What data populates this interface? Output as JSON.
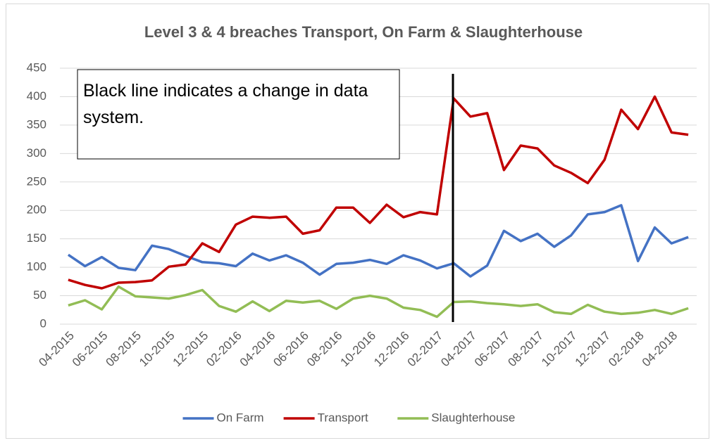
{
  "chart_data": {
    "type": "line",
    "title": "Level 3 & 4 breaches Transport, On Farm & Slaughterhouse",
    "annotation": "Black line indicates a change in data system.",
    "categories": [
      "04-2015",
      null,
      "06-2015",
      null,
      "08-2015",
      null,
      "10-2015",
      null,
      "12-2015",
      null,
      "02-2016",
      null,
      "04-2016",
      null,
      "06-2016",
      null,
      "08-2016",
      null,
      "10-2016",
      null,
      "12-2016",
      null,
      "02-2017",
      null,
      "04-2017",
      null,
      "06-2017",
      null,
      "08-2017",
      null,
      "10-2017",
      null,
      "12-2017",
      null,
      "02-2018",
      null,
      "04-2018",
      null
    ],
    "series": [
      {
        "name": "On Farm",
        "color": "#4472c4",
        "values": [
          122,
          102,
          118,
          99,
          95,
          138,
          132,
          120,
          109,
          107,
          102,
          124,
          112,
          121,
          108,
          87,
          106,
          108,
          113,
          106,
          121,
          112,
          98,
          107,
          84,
          103,
          164,
          146,
          159,
          136,
          156,
          193,
          197,
          209,
          111,
          170,
          142,
          153
        ]
      },
      {
        "name": "Transport",
        "color": "#c00000",
        "values": [
          78,
          69,
          63,
          73,
          74,
          77,
          101,
          105,
          142,
          127,
          175,
          189,
          187,
          189,
          159,
          165,
          205,
          205,
          178,
          210,
          188,
          197,
          193,
          397,
          365,
          371,
          271,
          314,
          309,
          279,
          266,
          248,
          289,
          377,
          343,
          400,
          337,
          333
        ]
      },
      {
        "name": "Slaughterhouse",
        "color": "#92bd55",
        "values": [
          33,
          42,
          26,
          66,
          49,
          47,
          45,
          51,
          60,
          32,
          22,
          40,
          23,
          41,
          38,
          41,
          27,
          45,
          50,
          45,
          29,
          25,
          13,
          39,
          40,
          37,
          35,
          32,
          35,
          21,
          18,
          34,
          22,
          18,
          20,
          25,
          18,
          28
        ]
      }
    ],
    "ylim": [
      0,
      450
    ],
    "yticks": [
      0,
      50,
      100,
      150,
      200,
      250,
      300,
      350,
      400,
      450
    ],
    "grid": true,
    "legend": "bottom"
  }
}
